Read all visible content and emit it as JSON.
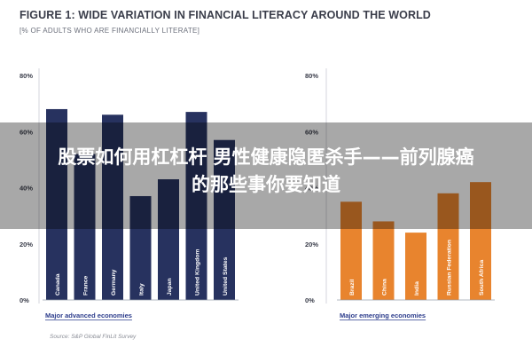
{
  "header": {
    "title": "FIGURE 1: WIDE VARIATION IN FINANCIAL LITERACY AROUND THE WORLD",
    "subtitle": "[% OF ADULTS WHO ARE FINANCIALLY LITERATE]"
  },
  "overlay": {
    "line1": "股票如何用杠杠杆 男性健康隐匿杀手——前列腺癌",
    "line2": "的那些事你要知道"
  },
  "source": "Source: S&P Global FinLit Survey",
  "colors": {
    "advanced": "#27325f",
    "emerging": "#e8842e",
    "axis_text": "#3a3d4a",
    "group_label": "#2c3c8c"
  },
  "chart_data": [
    {
      "type": "bar",
      "group_label": "Major advanced economies",
      "categories": [
        "Canada",
        "France",
        "Germany",
        "Italy",
        "Japan",
        "United Kingdom",
        "United States"
      ],
      "values": [
        68,
        52,
        66,
        37,
        43,
        67,
        57
      ],
      "ylim": [
        0,
        80
      ],
      "yticks": [
        "0%",
        "20%",
        "40%",
        "60%",
        "80%"
      ],
      "color": "#27325f"
    },
    {
      "type": "bar",
      "group_label": "Major emerging economies",
      "categories": [
        "Brazil",
        "China",
        "India",
        "Russian Federation",
        "South Africa"
      ],
      "values": [
        35,
        28,
        24,
        38,
        42
      ],
      "ylim": [
        0,
        80
      ],
      "yticks": [
        "0%",
        "20%",
        "40%",
        "60%",
        "80%"
      ],
      "color": "#e8842e"
    }
  ]
}
